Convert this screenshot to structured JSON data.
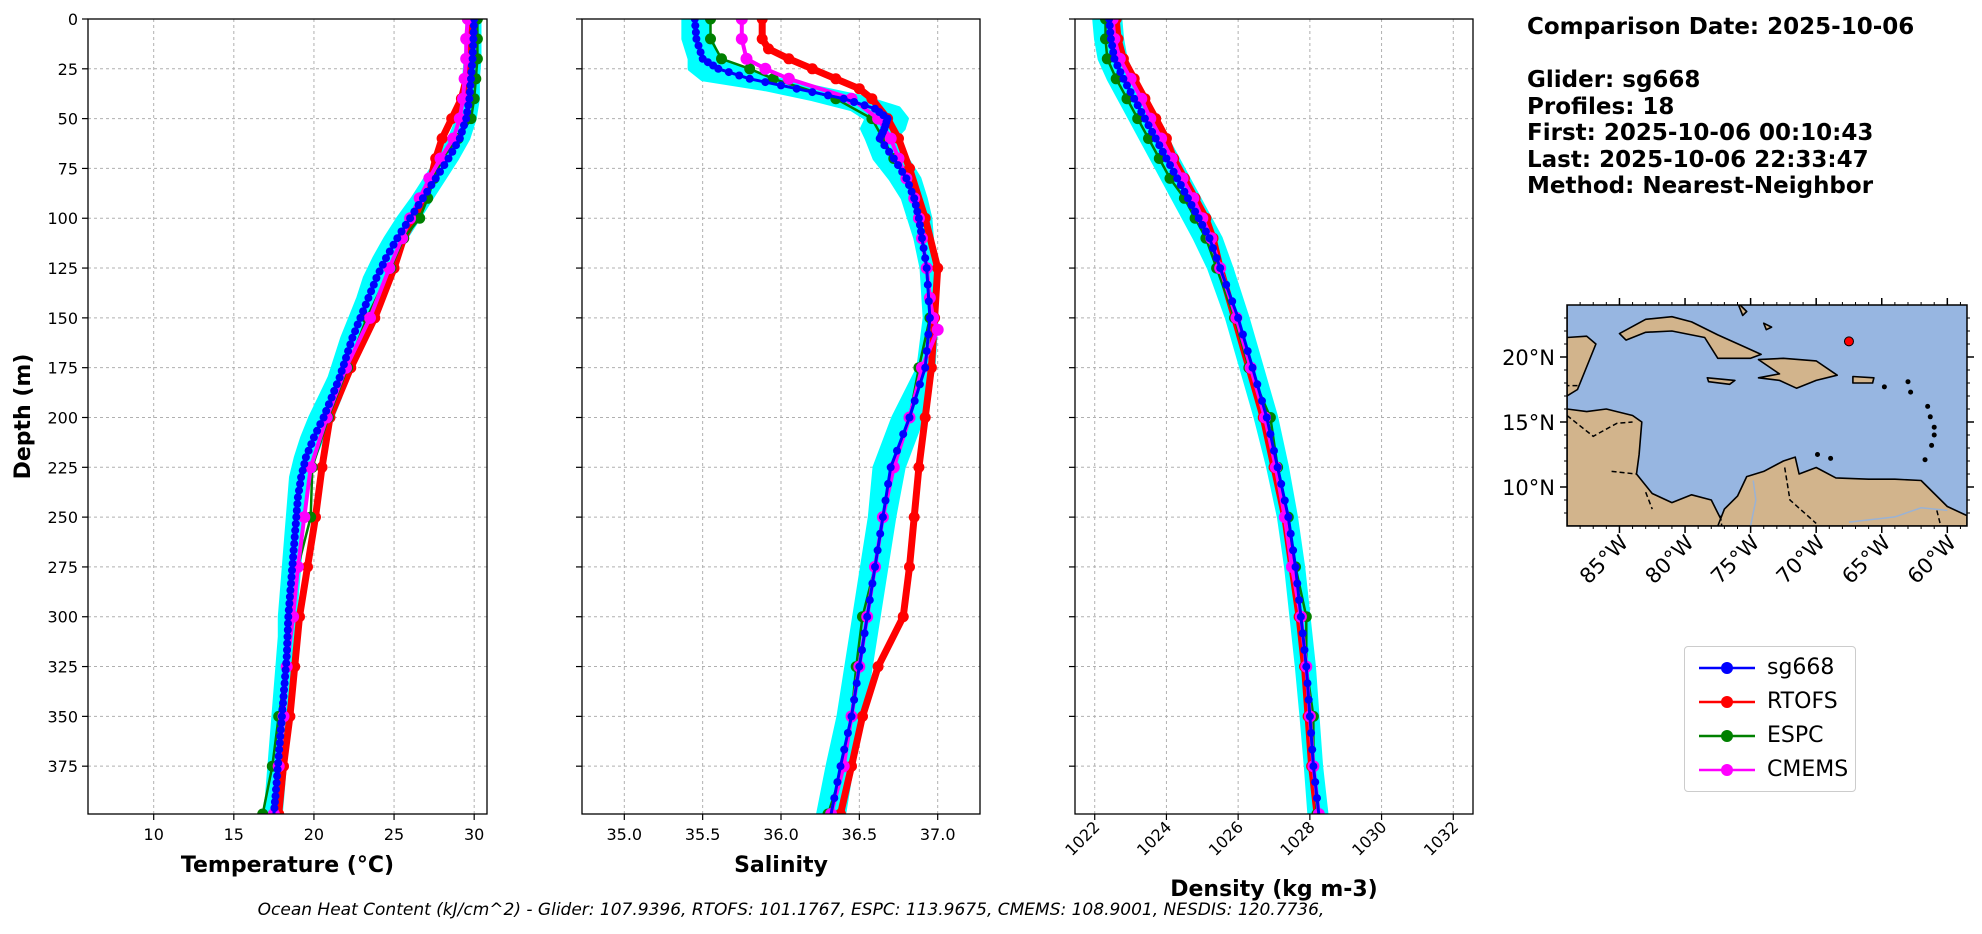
{
  "info": {
    "comparison_date": "Comparison Date: 2025-10-06",
    "glider": "Glider: sg668",
    "profiles": "Profiles: 18",
    "first": "First: 2025-10-06 00:10:43",
    "last": "Last: 2025-10-06 22:33:47",
    "method": "Method: Nearest-Neighbor"
  },
  "footer": "Ocean Heat Content (kJ/cm^2) - Glider: 107.9396,  RTOFS: 101.1767,  ESPC: 113.9675,  CMEMS: 108.9001,  NESDIS: 120.7736,",
  "colors": {
    "sg668": "#0000ff",
    "sg668_spread": "#00ffff",
    "RTOFS": "#ff0000",
    "ESPC": "#008000",
    "CMEMS": "#ff00ff",
    "grid": "#b0b0b0",
    "ocean": "#97b6e1",
    "land": "#d2b48c"
  },
  "legend": [
    {
      "name": "sg668",
      "color": "#0000ff"
    },
    {
      "name": "RTOFS",
      "color": "#ff0000"
    },
    {
      "name": "ESPC",
      "color": "#008000"
    },
    {
      "name": "CMEMS",
      "color": "#ff00ff"
    }
  ],
  "chart_data": [
    {
      "type": "line",
      "xlabel": "Temperature (°C)",
      "ylabel": "Depth (m)",
      "xlim": [
        5.9,
        30.8
      ],
      "ylim": [
        399,
        0
      ],
      "xticks": [
        10,
        15,
        20,
        25,
        30
      ],
      "yticks": [
        0,
        25,
        50,
        75,
        100,
        125,
        150,
        175,
        200,
        225,
        250,
        275,
        300,
        325,
        350,
        375
      ],
      "grid": true,
      "series": [
        {
          "name": "sg668",
          "depth": [
            0,
            10,
            20,
            30,
            40,
            50,
            60,
            70,
            80,
            90,
            100,
            110,
            120,
            130,
            140,
            150,
            160,
            170,
            180,
            190,
            200,
            210,
            220,
            230,
            240,
            250,
            260,
            270,
            280,
            290,
            300,
            310,
            320,
            330,
            340,
            350,
            360,
            370,
            380,
            390,
            399
          ],
          "values": [
            30.0,
            29.95,
            29.9,
            29.8,
            29.7,
            29.5,
            29.1,
            28.4,
            27.6,
            26.8,
            26.0,
            25.2,
            24.5,
            23.9,
            23.4,
            22.9,
            22.4,
            22.0,
            21.6,
            21.1,
            20.6,
            20.0,
            19.5,
            19.2,
            19.0,
            18.9,
            18.8,
            18.7,
            18.6,
            18.5,
            18.4,
            18.35,
            18.3,
            18.2,
            18.1,
            18.0,
            17.9,
            17.8,
            17.7,
            17.6,
            17.5
          ],
          "spread_min": [
            29.6,
            29.6,
            29.5,
            29.4,
            29.3,
            29.0,
            28.5,
            27.8,
            27.0,
            26.2,
            25.3,
            24.5,
            23.8,
            23.2,
            22.8,
            22.3,
            21.8,
            21.4,
            21.0,
            20.4,
            19.8,
            19.3,
            18.9,
            18.6,
            18.5,
            18.4,
            18.3,
            18.2,
            18.1,
            18.0,
            17.9,
            17.9,
            17.8,
            17.7,
            17.6,
            17.5,
            17.4,
            17.3,
            17.2,
            17.1,
            16.9
          ],
          "spread_max": [
            30.3,
            30.3,
            30.3,
            30.2,
            30.2,
            30.0,
            29.6,
            28.9,
            28.1,
            27.3,
            26.5,
            25.7,
            25.0,
            24.4,
            23.8,
            23.3,
            22.8,
            22.4,
            22.0,
            21.6,
            21.1,
            20.5,
            20.0,
            19.6,
            19.4,
            19.3,
            19.2,
            19.1,
            19.0,
            18.9,
            18.8,
            18.7,
            18.7,
            18.6,
            18.5,
            18.4,
            18.3,
            18.2,
            18.1,
            18.0,
            17.9
          ]
        },
        {
          "name": "RTOFS",
          "depth": [
            0,
            10,
            20,
            30,
            40,
            50,
            60,
            70,
            80,
            90,
            100,
            110,
            125,
            150,
            175,
            200,
            225,
            250,
            275,
            300,
            325,
            350,
            375,
            399
          ],
          "values": [
            29.7,
            29.65,
            29.6,
            29.5,
            29.2,
            28.6,
            28.0,
            27.6,
            27.3,
            26.8,
            26.3,
            25.6,
            25.0,
            23.8,
            22.3,
            21.0,
            20.5,
            20.1,
            19.6,
            19.1,
            18.8,
            18.5,
            18.1,
            17.8
          ]
        },
        {
          "name": "ESPC",
          "depth": [
            0,
            10,
            20,
            30,
            40,
            50,
            60,
            70,
            80,
            90,
            100,
            110,
            125,
            150,
            175,
            200,
            225,
            250,
            275,
            300,
            325,
            350,
            375,
            399
          ],
          "values": [
            30.2,
            30.2,
            30.2,
            30.1,
            30.0,
            29.8,
            29.0,
            28.0,
            27.5,
            27.1,
            26.6,
            25.6,
            24.8,
            23.3,
            22.1,
            20.9,
            19.9,
            19.8,
            19.0,
            18.6,
            18.3,
            17.8,
            17.4,
            16.8
          ]
        },
        {
          "name": "CMEMS",
          "depth": [
            0,
            10,
            20,
            30,
            40,
            50,
            60,
            70,
            80,
            90,
            100,
            110,
            125,
            150,
            175,
            200,
            225,
            250,
            275,
            300,
            325,
            350,
            375,
            399
          ],
          "values": [
            29.6,
            29.5,
            29.5,
            29.4,
            29.3,
            29.1,
            28.7,
            27.9,
            27.2,
            26.6,
            26.0,
            25.5,
            24.7,
            23.5,
            22.0,
            20.8,
            19.8,
            19.4,
            19.0,
            18.7,
            18.3,
            18.1,
            17.8,
            17.5
          ]
        }
      ]
    },
    {
      "type": "line",
      "xlabel": "Salinity",
      "ylabel": "",
      "xlim": [
        34.73,
        37.27
      ],
      "ylim": [
        399,
        0
      ],
      "xticks": [
        35.0,
        35.5,
        36.0,
        36.5,
        37.0
      ],
      "grid": true,
      "series": [
        {
          "name": "sg668",
          "depth": [
            0,
            10,
            20,
            25,
            30,
            35,
            40,
            45,
            50,
            55,
            60,
            70,
            80,
            90,
            100,
            110,
            125,
            150,
            175,
            200,
            225,
            250,
            275,
            300,
            325,
            350,
            375,
            399
          ],
          "values": [
            35.45,
            35.46,
            35.5,
            35.6,
            35.8,
            36.1,
            36.4,
            36.6,
            36.68,
            36.66,
            36.63,
            36.72,
            36.8,
            36.85,
            36.88,
            36.9,
            36.93,
            36.95,
            36.92,
            36.82,
            36.7,
            36.65,
            36.6,
            36.55,
            36.5,
            36.45,
            36.38,
            36.32
          ],
          "spread_min": [
            35.38,
            35.38,
            35.42,
            35.42,
            35.5,
            35.9,
            36.2,
            36.45,
            36.55,
            36.52,
            36.55,
            36.6,
            36.7,
            36.78,
            36.82,
            36.86,
            36.9,
            36.92,
            36.88,
            36.72,
            36.6,
            36.57,
            36.52,
            36.47,
            36.42,
            36.37,
            36.3,
            36.24
          ],
          "spread_max": [
            35.52,
            35.55,
            35.6,
            35.75,
            35.95,
            36.25,
            36.55,
            36.75,
            36.8,
            36.78,
            36.72,
            36.8,
            36.88,
            36.92,
            36.95,
            36.96,
            36.98,
            36.99,
            36.97,
            36.9,
            36.78,
            36.72,
            36.67,
            36.62,
            36.57,
            36.52,
            36.45,
            36.4
          ]
        },
        {
          "name": "RTOFS",
          "depth": [
            0,
            10,
            15,
            20,
            25,
            30,
            35,
            40,
            50,
            60,
            75,
            100,
            125,
            150,
            175,
            200,
            225,
            250,
            275,
            300,
            325,
            350,
            375,
            399
          ],
          "values": [
            35.88,
            35.88,
            35.92,
            36.05,
            36.2,
            36.35,
            36.5,
            36.58,
            36.68,
            36.75,
            36.82,
            36.92,
            37.0,
            36.98,
            36.96,
            36.92,
            36.88,
            36.85,
            36.82,
            36.78,
            36.62,
            36.52,
            36.45,
            36.38
          ]
        },
        {
          "name": "ESPC",
          "depth": [
            0,
            10,
            20,
            25,
            30,
            40,
            50,
            60,
            70,
            80,
            90,
            100,
            125,
            150,
            175,
            200,
            225,
            250,
            275,
            300,
            325,
            350,
            375,
            399
          ],
          "values": [
            35.55,
            35.55,
            35.62,
            35.8,
            35.95,
            36.35,
            36.58,
            36.65,
            36.72,
            36.8,
            36.85,
            36.88,
            36.93,
            36.95,
            36.88,
            36.82,
            36.72,
            36.65,
            36.6,
            36.52,
            36.48,
            36.45,
            36.4,
            36.3
          ]
        },
        {
          "name": "CMEMS",
          "depth": [
            0,
            10,
            20,
            25,
            30,
            40,
            50,
            60,
            70,
            80,
            90,
            100,
            110,
            125,
            140,
            150,
            156,
            175,
            200,
            225,
            250,
            275,
            300,
            325,
            350,
            375,
            399
          ],
          "values": [
            35.75,
            35.75,
            35.78,
            35.9,
            36.05,
            36.45,
            36.62,
            36.7,
            36.75,
            36.8,
            36.85,
            36.88,
            36.9,
            36.93,
            36.95,
            36.97,
            37.0,
            36.9,
            36.82,
            36.72,
            36.65,
            36.6,
            36.55,
            36.5,
            36.45,
            36.4,
            36.32
          ]
        }
      ]
    },
    {
      "type": "line",
      "xlabel": "Density (kg m-3)",
      "ylabel": "",
      "xlim": [
        1021.45,
        1032.55
      ],
      "ylim": [
        399,
        0
      ],
      "xticks": [
        1022,
        1024,
        1026,
        1028,
        1030,
        1032
      ],
      "grid": true,
      "series": [
        {
          "name": "sg668",
          "depth": [
            0,
            10,
            20,
            30,
            40,
            50,
            60,
            70,
            80,
            90,
            100,
            110,
            125,
            150,
            175,
            200,
            225,
            250,
            275,
            300,
            325,
            350,
            375,
            399
          ],
          "values": [
            1022.4,
            1022.45,
            1022.55,
            1022.8,
            1023.1,
            1023.4,
            1023.7,
            1024.0,
            1024.3,
            1024.6,
            1024.9,
            1025.2,
            1025.5,
            1026.0,
            1026.4,
            1026.8,
            1027.1,
            1027.4,
            1027.6,
            1027.75,
            1027.9,
            1028.0,
            1028.1,
            1028.25
          ],
          "spread_min": [
            1022.0,
            1022.05,
            1022.15,
            1022.4,
            1022.7,
            1023.0,
            1023.3,
            1023.6,
            1023.9,
            1024.2,
            1024.5,
            1024.8,
            1025.2,
            1025.7,
            1026.1,
            1026.5,
            1026.85,
            1027.15,
            1027.35,
            1027.5,
            1027.65,
            1027.78,
            1027.9,
            1028.0
          ],
          "spread_max": [
            1022.7,
            1022.75,
            1022.85,
            1023.1,
            1023.4,
            1023.7,
            1024.0,
            1024.3,
            1024.6,
            1024.9,
            1025.2,
            1025.5,
            1025.8,
            1026.25,
            1026.65,
            1027.05,
            1027.35,
            1027.6,
            1027.8,
            1027.95,
            1028.1,
            1028.2,
            1028.3,
            1028.45
          ]
        },
        {
          "name": "RTOFS",
          "depth": [
            0,
            10,
            20,
            30,
            40,
            50,
            60,
            70,
            80,
            90,
            100,
            110,
            125,
            150,
            175,
            200,
            225,
            250,
            275,
            300,
            325,
            350,
            375,
            399
          ],
          "values": [
            1022.6,
            1022.65,
            1022.8,
            1023.1,
            1023.4,
            1023.7,
            1024.0,
            1024.2,
            1024.5,
            1024.8,
            1025.1,
            1025.3,
            1025.5,
            1025.9,
            1026.3,
            1026.7,
            1027.0,
            1027.3,
            1027.5,
            1027.7,
            1027.85,
            1027.95,
            1028.05,
            1028.2
          ]
        },
        {
          "name": "ESPC",
          "depth": [
            0,
            10,
            20,
            30,
            40,
            50,
            60,
            70,
            80,
            90,
            100,
            110,
            125,
            150,
            175,
            200,
            225,
            250,
            275,
            300,
            325,
            350,
            375,
            399
          ],
          "values": [
            1022.3,
            1022.3,
            1022.35,
            1022.6,
            1022.9,
            1023.2,
            1023.5,
            1023.8,
            1024.1,
            1024.5,
            1024.8,
            1025.1,
            1025.4,
            1025.9,
            1026.3,
            1026.9,
            1027.1,
            1027.4,
            1027.6,
            1027.9,
            1027.9,
            1028.1,
            1028.1,
            1028.2
          ]
        },
        {
          "name": "CMEMS",
          "depth": [
            0,
            10,
            20,
            30,
            40,
            50,
            60,
            70,
            80,
            90,
            100,
            110,
            125,
            150,
            175,
            200,
            225,
            250,
            275,
            300,
            325,
            350,
            375,
            399
          ],
          "values": [
            1022.5,
            1022.55,
            1022.7,
            1023.0,
            1023.3,
            1023.55,
            1023.85,
            1024.15,
            1024.45,
            1024.75,
            1025.0,
            1025.25,
            1025.5,
            1025.95,
            1026.35,
            1026.75,
            1027.05,
            1027.3,
            1027.5,
            1027.75,
            1027.9,
            1028.0,
            1028.1,
            1028.25
          ]
        }
      ]
    },
    {
      "type": "map",
      "lon_range": [
        -89,
        -58.5
      ],
      "lat_range": [
        7,
        24
      ],
      "xticks": [
        "85°W",
        "80°W",
        "75°W",
        "70°W",
        "65°W",
        "60°W"
      ],
      "xtick_values": [
        -85,
        -80,
        -75,
        -70,
        -65,
        -60
      ],
      "yticks": [
        "10°N",
        "15°N",
        "20°N"
      ],
      "ytick_values": [
        10,
        15,
        20
      ],
      "glider_position": {
        "lon": -67.5,
        "lat": 21.2
      }
    }
  ]
}
